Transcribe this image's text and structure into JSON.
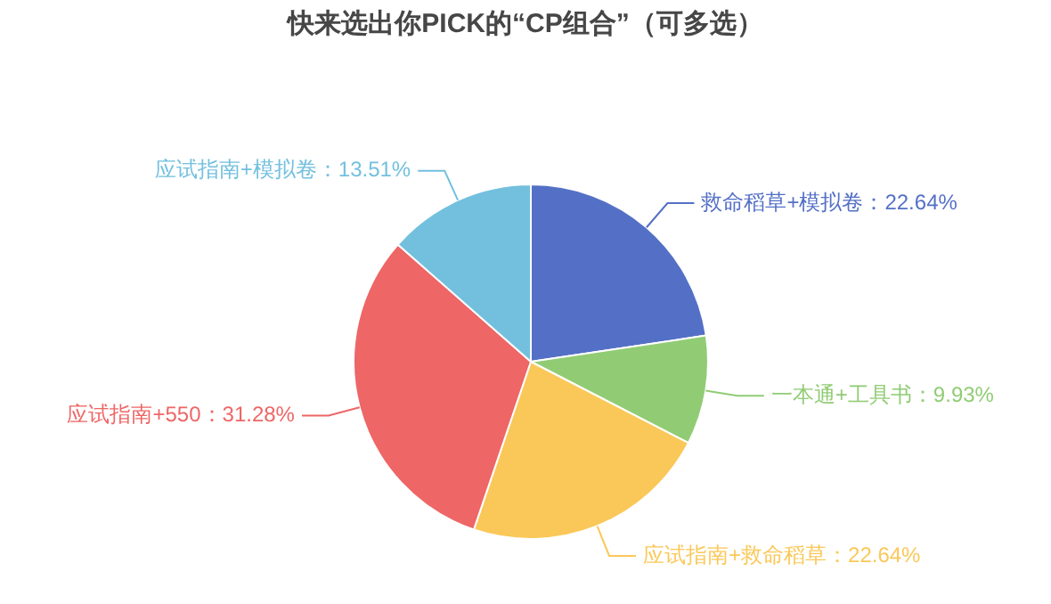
{
  "chart_data": {
    "type": "pie",
    "title": "快来选出你PICK的“CP组合”（可多选）",
    "categories": [
      "救命稻草+模拟卷",
      "一本通+工具书",
      "应试指南+救命稻草",
      "应试指南+550",
      "应试指南+模拟卷"
    ],
    "values": [
      22.64,
      9.93,
      22.64,
      31.28,
      13.51
    ],
    "value_labels": [
      "22.64%",
      "9.93%",
      "22.64%",
      "31.28%",
      "13.51%"
    ],
    "colors": [
      "#5470c6",
      "#91cc75",
      "#fac858",
      "#ee6666",
      "#73c0de"
    ],
    "legend": false
  }
}
